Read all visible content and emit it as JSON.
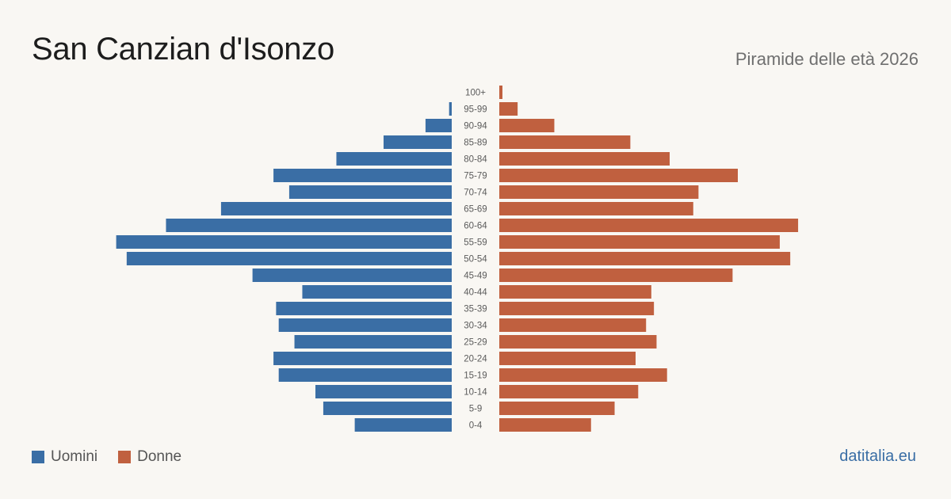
{
  "header": {
    "title": "San Canzian d'Isonzo",
    "subtitle": "Piramide delle età 2026"
  },
  "legend": {
    "men_label": "Uomini",
    "women_label": "Donne"
  },
  "footer": {
    "source": "datitalia.eu"
  },
  "colors": {
    "men": "#3a6ea5",
    "women": "#c0603f",
    "background": "#f9f7f3"
  },
  "chart_data": {
    "type": "bar",
    "orientation": "horizontal-pyramid",
    "title": "San Canzian d'Isonzo",
    "subtitle": "Piramide delle età 2026",
    "legend_position": "bottom-left",
    "grid": false,
    "axis_labels_visible": false,
    "categories": [
      "100+",
      "95-99",
      "90-94",
      "85-89",
      "80-84",
      "75-79",
      "70-74",
      "65-69",
      "60-64",
      "55-59",
      "50-54",
      "45-49",
      "40-44",
      "35-39",
      "30-34",
      "25-29",
      "20-24",
      "15-19",
      "10-14",
      "5-9",
      "0-4"
    ],
    "series": [
      {
        "name": "Uomini",
        "values": [
          0,
          1,
          10,
          26,
          44,
          68,
          62,
          88,
          109,
          128,
          124,
          76,
          57,
          67,
          66,
          60,
          68,
          66,
          52,
          49,
          37
        ]
      },
      {
        "name": "Donne",
        "values": [
          1,
          7,
          21,
          50,
          65,
          91,
          76,
          74,
          114,
          107,
          111,
          89,
          58,
          59,
          56,
          60,
          52,
          64,
          53,
          44,
          35
        ]
      }
    ],
    "xlim": [
      0,
      130
    ]
  }
}
